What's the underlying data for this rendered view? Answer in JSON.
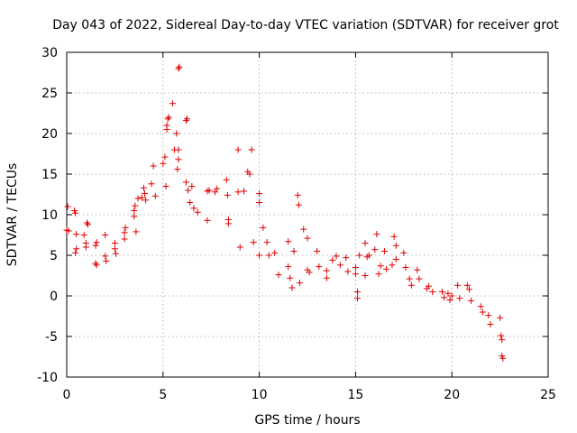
{
  "chart_data": {
    "type": "scatter",
    "title": "Day 043 of 2022, Sidereal Day-to-day VTEC variation (SDTVAR) for receiver grot",
    "xlabel": "GPS time / hours",
    "ylabel": "SDTVAR / TECUs",
    "xlim": [
      0,
      25
    ],
    "ylim": [
      -10,
      30
    ],
    "xticks": [
      0,
      5,
      10,
      15,
      20,
      25
    ],
    "yticks": [
      -10,
      -5,
      0,
      5,
      10,
      15,
      20,
      25,
      30
    ],
    "grid": true,
    "marker": "+",
    "color": "#e00000",
    "series": [
      {
        "name": "SDTVAR",
        "points": [
          [
            0.0,
            8.1
          ],
          [
            0.05,
            11.0
          ],
          [
            0.1,
            8.0
          ],
          [
            0.4,
            10.5
          ],
          [
            0.45,
            10.2
          ],
          [
            0.5,
            7.6
          ],
          [
            0.5,
            5.8
          ],
          [
            0.45,
            5.3
          ],
          [
            0.9,
            7.5
          ],
          [
            1.0,
            6.5
          ],
          [
            1.0,
            6.0
          ],
          [
            1.05,
            9.0
          ],
          [
            1.1,
            8.8
          ],
          [
            1.5,
            6.2
          ],
          [
            1.55,
            6.6
          ],
          [
            1.5,
            4.0
          ],
          [
            1.55,
            3.8
          ],
          [
            2.0,
            7.5
          ],
          [
            2.0,
            4.9
          ],
          [
            2.05,
            4.3
          ],
          [
            2.5,
            6.5
          ],
          [
            2.5,
            5.8
          ],
          [
            2.55,
            5.2
          ],
          [
            3.0,
            7.0
          ],
          [
            3.0,
            7.8
          ],
          [
            3.05,
            8.4
          ],
          [
            3.5,
            10.5
          ],
          [
            3.5,
            9.8
          ],
          [
            3.55,
            11.1
          ],
          [
            3.6,
            7.9
          ],
          [
            3.7,
            12.0
          ],
          [
            3.9,
            12.1
          ],
          [
            4.0,
            13.3
          ],
          [
            4.05,
            12.6
          ],
          [
            4.1,
            11.8
          ],
          [
            4.4,
            13.8
          ],
          [
            4.5,
            16.0
          ],
          [
            4.6,
            12.3
          ],
          [
            5.0,
            16.3
          ],
          [
            5.1,
            17.1
          ],
          [
            5.15,
            13.5
          ],
          [
            5.2,
            20.5
          ],
          [
            5.2,
            21.0
          ],
          [
            5.25,
            21.8
          ],
          [
            5.3,
            22.0
          ],
          [
            5.5,
            23.7
          ],
          [
            5.6,
            18.0
          ],
          [
            5.7,
            20.0
          ],
          [
            5.75,
            15.6
          ],
          [
            5.8,
            16.8
          ],
          [
            5.8,
            28.0
          ],
          [
            5.85,
            28.2
          ],
          [
            5.8,
            18.0
          ],
          [
            6.2,
            21.6
          ],
          [
            6.25,
            21.8
          ],
          [
            6.2,
            14.0
          ],
          [
            6.3,
            13.0
          ],
          [
            6.4,
            11.5
          ],
          [
            6.5,
            13.5
          ],
          [
            6.6,
            10.8
          ],
          [
            6.8,
            10.3
          ],
          [
            7.3,
            12.9
          ],
          [
            7.4,
            13.0
          ],
          [
            7.3,
            9.3
          ],
          [
            7.7,
            12.8
          ],
          [
            7.8,
            13.2
          ],
          [
            8.3,
            14.3
          ],
          [
            8.35,
            12.4
          ],
          [
            8.4,
            9.4
          ],
          [
            8.4,
            8.9
          ],
          [
            8.9,
            18.0
          ],
          [
            8.9,
            12.8
          ],
          [
            9.0,
            6.0
          ],
          [
            9.2,
            12.9
          ],
          [
            9.4,
            15.3
          ],
          [
            9.5,
            15.0
          ],
          [
            9.6,
            18.0
          ],
          [
            9.7,
            6.6
          ],
          [
            10.0,
            12.6
          ],
          [
            10.0,
            11.5
          ],
          [
            10.0,
            5.0
          ],
          [
            10.2,
            8.4
          ],
          [
            10.4,
            6.6
          ],
          [
            10.5,
            5.0
          ],
          [
            10.8,
            5.3
          ],
          [
            11.0,
            2.6
          ],
          [
            11.5,
            6.7
          ],
          [
            11.5,
            3.6
          ],
          [
            11.6,
            2.2
          ],
          [
            11.7,
            1.0
          ],
          [
            11.8,
            5.5
          ],
          [
            12.0,
            12.4
          ],
          [
            12.05,
            11.2
          ],
          [
            12.1,
            1.6
          ],
          [
            12.3,
            8.2
          ],
          [
            12.5,
            7.1
          ],
          [
            12.5,
            3.2
          ],
          [
            12.6,
            2.9
          ],
          [
            13.0,
            5.5
          ],
          [
            13.1,
            3.6
          ],
          [
            13.5,
            3.1
          ],
          [
            13.5,
            2.2
          ],
          [
            13.8,
            4.4
          ],
          [
            14.0,
            4.9
          ],
          [
            14.2,
            3.8
          ],
          [
            14.5,
            4.7
          ],
          [
            14.6,
            3.0
          ],
          [
            15.0,
            3.5
          ],
          [
            15.0,
            2.7
          ],
          [
            15.1,
            -0.3
          ],
          [
            15.1,
            0.5
          ],
          [
            15.2,
            5.0
          ],
          [
            15.5,
            6.5
          ],
          [
            15.5,
            2.5
          ],
          [
            15.6,
            4.8
          ],
          [
            15.7,
            5.0
          ],
          [
            16.0,
            5.7
          ],
          [
            16.1,
            7.6
          ],
          [
            16.2,
            2.7
          ],
          [
            16.3,
            3.7
          ],
          [
            16.5,
            5.5
          ],
          [
            16.6,
            3.3
          ],
          [
            16.9,
            3.8
          ],
          [
            17.0,
            7.3
          ],
          [
            17.1,
            6.2
          ],
          [
            17.1,
            4.5
          ],
          [
            17.5,
            5.3
          ],
          [
            17.6,
            3.5
          ],
          [
            17.8,
            2.1
          ],
          [
            17.9,
            1.3
          ],
          [
            18.2,
            3.2
          ],
          [
            18.3,
            2.1
          ],
          [
            18.7,
            0.9
          ],
          [
            18.8,
            1.2
          ],
          [
            19.0,
            0.5
          ],
          [
            19.5,
            0.5
          ],
          [
            19.6,
            -0.2
          ],
          [
            19.8,
            0.3
          ],
          [
            19.9,
            -0.5
          ],
          [
            20.0,
            0.0
          ],
          [
            20.3,
            1.3
          ],
          [
            20.4,
            -0.3
          ],
          [
            20.8,
            1.3
          ],
          [
            20.9,
            0.8
          ],
          [
            21.0,
            -0.6
          ],
          [
            21.5,
            -1.3
          ],
          [
            21.6,
            -2.0
          ],
          [
            21.9,
            -2.4
          ],
          [
            22.0,
            -3.5
          ],
          [
            22.5,
            -2.7
          ],
          [
            22.55,
            -4.9
          ],
          [
            22.6,
            -5.4
          ],
          [
            22.6,
            -7.4
          ],
          [
            22.65,
            -7.7
          ]
        ]
      }
    ]
  }
}
